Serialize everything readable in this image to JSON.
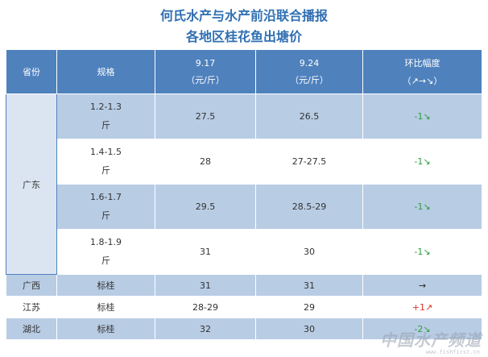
{
  "title_line1": "何氏水产与水产前沿联合播报",
  "title_line2": "各地区桂花鱼出塘价",
  "header": {
    "province": "省份",
    "spec": "规格",
    "date1": "9.17",
    "date1_unit": "（元/斤）",
    "date2": "9.24",
    "date2_unit": "（元/斤）",
    "change": "环比幅度",
    "change_legend": "（↗→↘）"
  },
  "rows": {
    "guangdong": {
      "province": "广东",
      "r0": {
        "spec1": "1.2-1.3",
        "spec2": "斤",
        "p1": "27.5",
        "p2": "26.5",
        "change": "-1↘"
      },
      "r1": {
        "spec1": "1.4-1.5",
        "spec2": "斤",
        "p1": "28",
        "p2": "27-27.5",
        "change": "-1↘"
      },
      "r2": {
        "spec1": "1.6-1.7",
        "spec2": "斤",
        "p1": "29.5",
        "p2": "28.5-29",
        "change": "-1↘"
      },
      "r3": {
        "spec1": "1.8-1.9",
        "spec2": "斤",
        "p1": "31",
        "p2": "30",
        "change": "-1↘"
      }
    },
    "guangxi": {
      "province": "广西",
      "spec": "标桂",
      "p1": "31",
      "p2": "31",
      "change": "→"
    },
    "jiangsu": {
      "province": "江苏",
      "spec": "标桂",
      "p1": "28-29",
      "p2": "29",
      "change": "+1↗"
    },
    "hubei": {
      "province": "湖北",
      "spec": "标桂",
      "p1": "32",
      "p2": "30",
      "change": "-2↘"
    }
  },
  "watermark": "中国水产频道",
  "watermark_url": "www.fishfirst.cn",
  "colors": {
    "header_bg": "#4f81bd",
    "band_dark": "#b8cce4",
    "band_light": "#dbe5f1",
    "title": "#2f6fb2",
    "down": "#2e9c3c",
    "up": "#e0312b"
  }
}
